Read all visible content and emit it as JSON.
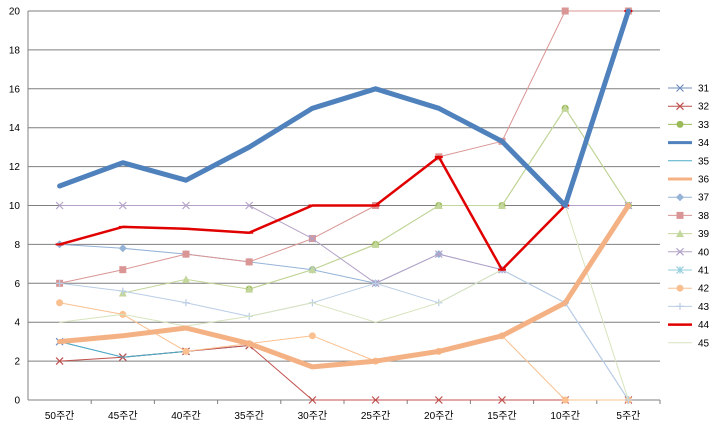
{
  "chart_data": {
    "type": "line",
    "title": "",
    "xlabel": "",
    "ylabel": "",
    "categories": [
      "50주간",
      "45주간",
      "40주간",
      "35주간",
      "30주간",
      "25주간",
      "20주간",
      "15주간",
      "10주간",
      "5주간"
    ],
    "ylim": [
      0,
      20
    ],
    "yticks": [
      0,
      2,
      4,
      6,
      8,
      10,
      12,
      14,
      16,
      18,
      20
    ],
    "grid": true,
    "legend_position": "right",
    "series": [
      {
        "name": "31",
        "color": "#6f8fbf",
        "width": 1,
        "marker": "x",
        "values": [
          3,
          2.2,
          2.5,
          2.8,
          null,
          null,
          null,
          null,
          null,
          null
        ]
      },
      {
        "name": "32",
        "color": "#c0504d",
        "width": 1,
        "marker": "x",
        "values": [
          2,
          2.2,
          2.5,
          2.8,
          0,
          0,
          0,
          0,
          0,
          0
        ]
      },
      {
        "name": "33",
        "color": "#9bbb59",
        "width": 1,
        "marker": "circle",
        "values": [
          null,
          null,
          null,
          5.7,
          6.7,
          8,
          10,
          10,
          15,
          10
        ]
      },
      {
        "name": "34",
        "color": "#4f81bd",
        "width": 5,
        "marker": "none",
        "values": [
          11,
          12.2,
          11.3,
          13,
          15,
          16,
          15,
          13.3,
          10,
          20
        ]
      },
      {
        "name": "35",
        "color": "#4bacc6",
        "width": 1,
        "marker": "none",
        "values": [
          3,
          2.2,
          2.5,
          null,
          null,
          null,
          null,
          null,
          null,
          null
        ]
      },
      {
        "name": "36",
        "color": "#f4b183",
        "width": 5,
        "marker": "none",
        "values": [
          3,
          3.3,
          3.7,
          2.9,
          1.7,
          2,
          2.5,
          3.3,
          5,
          10
        ]
      },
      {
        "name": "37",
        "color": "#95b3d7",
        "width": 1,
        "marker": "diamond",
        "values": [
          8,
          7.8,
          7.5,
          7.1,
          6.7,
          6,
          7.5,
          6.7,
          5,
          0
        ]
      },
      {
        "name": "38",
        "color": "#d99694",
        "width": 1,
        "marker": "square",
        "values": [
          6,
          6.7,
          7.5,
          7.1,
          8.3,
          10,
          12.5,
          13.3,
          20,
          20
        ]
      },
      {
        "name": "39",
        "color": "#c3d69b",
        "width": 1,
        "marker": "triangle",
        "values": [
          null,
          5.5,
          6.2,
          5.7,
          6.7,
          8,
          10,
          10,
          15,
          10
        ]
      },
      {
        "name": "40",
        "color": "#b3a2c7",
        "width": 1,
        "marker": "x",
        "values": [
          10,
          10,
          10,
          10,
          8.3,
          6,
          7.5,
          6.7,
          10,
          10
        ]
      },
      {
        "name": "41",
        "color": "#93cddd",
        "width": 1,
        "marker": "star",
        "values": [
          null,
          null,
          null,
          null,
          null,
          null,
          null,
          null,
          null,
          null
        ]
      },
      {
        "name": "42",
        "color": "#fac090",
        "width": 1,
        "marker": "circle",
        "values": [
          5,
          4.4,
          2.5,
          2.9,
          3.3,
          2,
          2.5,
          3.3,
          0,
          0
        ]
      },
      {
        "name": "43",
        "color": "#b9cde5",
        "width": 1,
        "marker": "plus",
        "values": [
          6,
          5.6,
          5,
          4.3,
          5,
          6,
          5,
          6.7,
          5,
          0
        ]
      },
      {
        "name": "44",
        "color": "#e00000",
        "width": 2.5,
        "marker": "dash",
        "values": [
          8,
          8.9,
          8.8,
          8.6,
          10,
          10,
          12.5,
          6.7,
          10,
          20
        ]
      },
      {
        "name": "45",
        "color": "#d7e4bd",
        "width": 1,
        "marker": "none",
        "values": [
          4,
          4.4,
          3.8,
          4.3,
          5,
          4,
          5,
          6.7,
          10,
          0
        ]
      }
    ]
  }
}
